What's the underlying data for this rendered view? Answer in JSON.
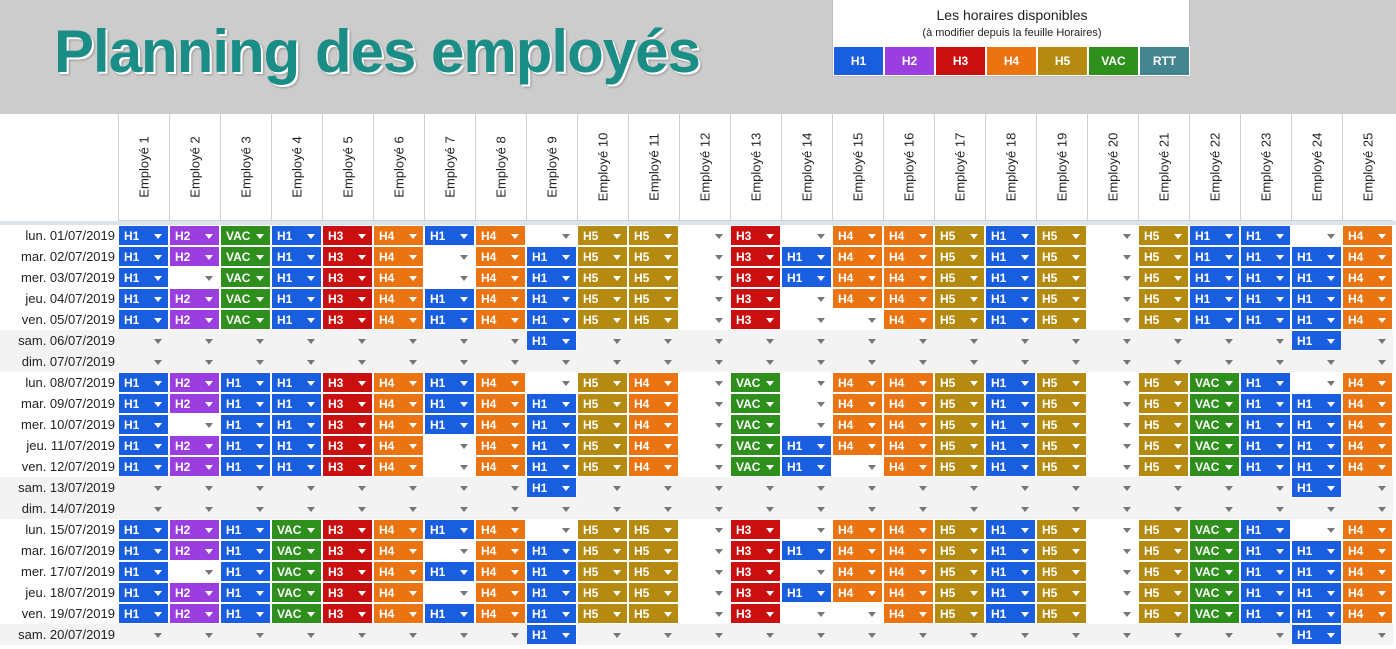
{
  "title": "Planning des employés",
  "legend": {
    "title": "Les horaires disponibles",
    "subtitle": "(à modifier depuis la feuille Horaires)",
    "codes": [
      "H1",
      "H2",
      "H3",
      "H4",
      "H5",
      "VAC",
      "RTT"
    ]
  },
  "colors": {
    "H1": "#1a5ee0",
    "H2": "#9b3ee0",
    "H3": "#c90f0f",
    "H4": "#ea7411",
    "H5": "#b58a10",
    "VAC": "#2e8f1c",
    "RTT": "#44848e",
    "title": "#1a8d87"
  },
  "employees": [
    "Employé 1",
    "Employé 2",
    "Employé 3",
    "Employé 4",
    "Employé 5",
    "Employé 6",
    "Employé 7",
    "Employé 8",
    "Employé 9",
    "Employé 10",
    "Employé 11",
    "Employé 12",
    "Employé 13",
    "Employé 14",
    "Employé 15",
    "Employé 16",
    "Employé 17",
    "Employé 18",
    "Employé 19",
    "Employé 20",
    "Employé 21",
    "Employé 22",
    "Employé 23",
    "Employé 24",
    "Employé 25"
  ],
  "rows": [
    {
      "date": "lun. 01/07/2019",
      "weekend": false,
      "cells": [
        "H1",
        "H2",
        "VAC",
        "H1",
        "H3",
        "H4",
        "H1",
        "H4",
        "",
        "H5",
        "H5",
        "",
        "H3",
        "",
        "H4",
        "H4",
        "H5",
        "H1",
        "H5",
        "",
        "H5",
        "H1",
        "H1",
        "",
        "H4"
      ]
    },
    {
      "date": "mar. 02/07/2019",
      "weekend": false,
      "cells": [
        "H1",
        "H2",
        "VAC",
        "H1",
        "H3",
        "H4",
        "",
        "H4",
        "H1",
        "H5",
        "H5",
        "",
        "H3",
        "H1",
        "H4",
        "H4",
        "H5",
        "H1",
        "H5",
        "",
        "H5",
        "H1",
        "H1",
        "H1",
        "H4"
      ]
    },
    {
      "date": "mer. 03/07/2019",
      "weekend": false,
      "cells": [
        "H1",
        "",
        "VAC",
        "H1",
        "H3",
        "H4",
        "",
        "H4",
        "H1",
        "H5",
        "H5",
        "",
        "H3",
        "H1",
        "H4",
        "H4",
        "H5",
        "H1",
        "H5",
        "",
        "H5",
        "H1",
        "H1",
        "H1",
        "H4"
      ]
    },
    {
      "date": "jeu. 04/07/2019",
      "weekend": false,
      "cells": [
        "H1",
        "H2",
        "VAC",
        "H1",
        "H3",
        "H4",
        "H1",
        "H4",
        "H1",
        "H5",
        "H5",
        "",
        "H3",
        "",
        "H4",
        "H4",
        "H5",
        "H1",
        "H5",
        "",
        "H5",
        "H1",
        "H1",
        "H1",
        "H4"
      ]
    },
    {
      "date": "ven. 05/07/2019",
      "weekend": false,
      "cells": [
        "H1",
        "H2",
        "VAC",
        "H1",
        "H3",
        "H4",
        "H1",
        "H4",
        "H1",
        "H5",
        "H5",
        "",
        "H3",
        "",
        "",
        "H4",
        "H5",
        "H1",
        "H5",
        "",
        "H5",
        "H1",
        "H1",
        "H1",
        "H4"
      ]
    },
    {
      "date": "sam. 06/07/2019",
      "weekend": true,
      "cells": [
        "",
        "",
        "",
        "",
        "",
        "",
        "",
        "",
        "H1",
        "",
        "",
        "",
        "",
        "",
        "",
        "",
        "",
        "",
        "",
        "",
        "",
        "",
        "",
        "H1",
        ""
      ]
    },
    {
      "date": "dim. 07/07/2019",
      "weekend": true,
      "cells": [
        "",
        "",
        "",
        "",
        "",
        "",
        "",
        "",
        "",
        "",
        "",
        "",
        "",
        "",
        "",
        "",
        "",
        "",
        "",
        "",
        "",
        "",
        "",
        "",
        ""
      ]
    },
    {
      "date": "lun. 08/07/2019",
      "weekend": false,
      "cells": [
        "H1",
        "H2",
        "H1",
        "H1",
        "H3",
        "H4",
        "H1",
        "H4",
        "",
        "H5",
        "H4",
        "",
        "VAC",
        "",
        "H4",
        "H4",
        "H5",
        "H1",
        "H5",
        "",
        "H5",
        "VAC",
        "H1",
        "",
        "H4"
      ]
    },
    {
      "date": "mar. 09/07/2019",
      "weekend": false,
      "cells": [
        "H1",
        "H2",
        "H1",
        "H1",
        "H3",
        "H4",
        "H1",
        "H4",
        "H1",
        "H5",
        "H4",
        "",
        "VAC",
        "",
        "H4",
        "H4",
        "H5",
        "H1",
        "H5",
        "",
        "H5",
        "VAC",
        "H1",
        "H1",
        "H4"
      ]
    },
    {
      "date": "mer. 10/07/2019",
      "weekend": false,
      "cells": [
        "H1",
        "",
        "H1",
        "H1",
        "H3",
        "H4",
        "H1",
        "H4",
        "H1",
        "H5",
        "H4",
        "",
        "VAC",
        "",
        "H4",
        "H4",
        "H5",
        "H1",
        "H5",
        "",
        "H5",
        "VAC",
        "H1",
        "H1",
        "H4"
      ]
    },
    {
      "date": "jeu. 11/07/2019",
      "weekend": false,
      "cells": [
        "H1",
        "H2",
        "H1",
        "H1",
        "H3",
        "H4",
        "",
        "H4",
        "H1",
        "H5",
        "H4",
        "",
        "VAC",
        "H1",
        "H4",
        "H4",
        "H5",
        "H1",
        "H5",
        "",
        "H5",
        "VAC",
        "H1",
        "H1",
        "H4"
      ]
    },
    {
      "date": "ven. 12/07/2019",
      "weekend": false,
      "cells": [
        "H1",
        "H2",
        "H1",
        "H1",
        "H3",
        "H4",
        "",
        "H4",
        "H1",
        "H5",
        "H4",
        "",
        "VAC",
        "H1",
        "",
        "H4",
        "H5",
        "H1",
        "H5",
        "",
        "H5",
        "VAC",
        "H1",
        "H1",
        "H4"
      ]
    },
    {
      "date": "sam. 13/07/2019",
      "weekend": true,
      "cells": [
        "",
        "",
        "",
        "",
        "",
        "",
        "",
        "",
        "H1",
        "",
        "",
        "",
        "",
        "",
        "",
        "",
        "",
        "",
        "",
        "",
        "",
        "",
        "",
        "H1",
        ""
      ]
    },
    {
      "date": "dim. 14/07/2019",
      "weekend": true,
      "cells": [
        "",
        "",
        "",
        "",
        "",
        "",
        "",
        "",
        "",
        "",
        "",
        "",
        "",
        "",
        "",
        "",
        "",
        "",
        "",
        "",
        "",
        "",
        "",
        "",
        ""
      ]
    },
    {
      "date": "lun. 15/07/2019",
      "weekend": false,
      "cells": [
        "H1",
        "H2",
        "H1",
        "VAC",
        "H3",
        "H4",
        "H1",
        "H4",
        "",
        "H5",
        "H5",
        "",
        "H3",
        "",
        "H4",
        "H4",
        "H5",
        "H1",
        "H5",
        "",
        "H5",
        "VAC",
        "H1",
        "",
        "H4"
      ]
    },
    {
      "date": "mar. 16/07/2019",
      "weekend": false,
      "cells": [
        "H1",
        "H2",
        "H1",
        "VAC",
        "H3",
        "H4",
        "",
        "H4",
        "H1",
        "H5",
        "H5",
        "",
        "H3",
        "H1",
        "H4",
        "H4",
        "H5",
        "H1",
        "H5",
        "",
        "H5",
        "VAC",
        "H1",
        "H1",
        "H4"
      ]
    },
    {
      "date": "mer. 17/07/2019",
      "weekend": false,
      "cells": [
        "H1",
        "",
        "H1",
        "VAC",
        "H3",
        "H4",
        "H1",
        "H4",
        "H1",
        "H5",
        "H5",
        "",
        "H3",
        "",
        "H4",
        "H4",
        "H5",
        "H1",
        "H5",
        "",
        "H5",
        "VAC",
        "H1",
        "H1",
        "H4"
      ]
    },
    {
      "date": "jeu. 18/07/2019",
      "weekend": false,
      "cells": [
        "H1",
        "H2",
        "H1",
        "VAC",
        "H3",
        "H4",
        "",
        "H4",
        "H1",
        "H5",
        "H5",
        "",
        "H3",
        "H1",
        "H4",
        "H4",
        "H5",
        "H1",
        "H5",
        "",
        "H5",
        "VAC",
        "H1",
        "H1",
        "H4"
      ]
    },
    {
      "date": "ven. 19/07/2019",
      "weekend": false,
      "cells": [
        "H1",
        "H2",
        "H1",
        "VAC",
        "H3",
        "H4",
        "H1",
        "H4",
        "H1",
        "H5",
        "H5",
        "",
        "H3",
        "",
        "",
        "H4",
        "H5",
        "H1",
        "H5",
        "",
        "H5",
        "VAC",
        "H1",
        "H1",
        "H4"
      ]
    },
    {
      "date": "sam. 20/07/2019",
      "weekend": true,
      "cells": [
        "",
        "",
        "",
        "",
        "",
        "",
        "",
        "",
        "H1",
        "",
        "",
        "",
        "",
        "",
        "",
        "",
        "",
        "",
        "",
        "",
        "",
        "",
        "",
        "H1",
        ""
      ]
    }
  ]
}
